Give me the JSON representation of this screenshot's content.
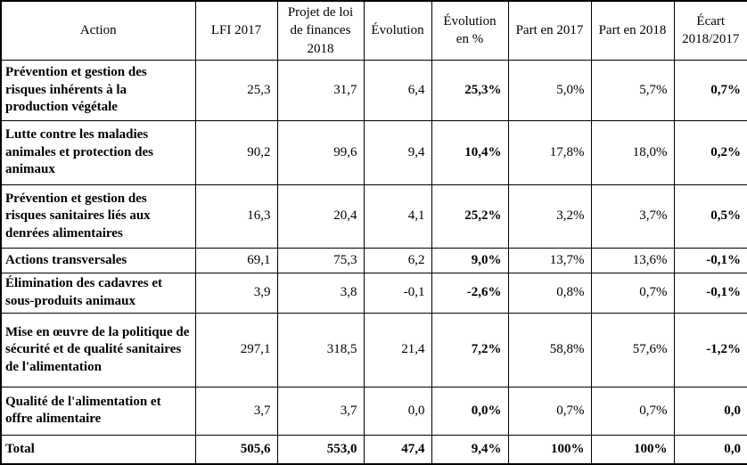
{
  "table": {
    "headers": [
      "Action",
      "LFI 2017",
      "Projet de loi de finances 2018",
      "Évolution",
      "Évolution en %",
      "Part en 2017",
      "Part en 2018",
      "Écart 2018/2017"
    ],
    "rows": [
      {
        "action": "Prévention et gestion des risques inhérents à la production végétale",
        "values": [
          "25,3",
          "31,7",
          "6,4",
          "25,3%",
          "5,0%",
          "5,7%",
          "0,7%"
        ]
      },
      {
        "action": "Lutte contre les maladies animales et protection des animaux",
        "values": [
          "90,2",
          "99,6",
          "9,4",
          "10,4%",
          "17,8%",
          "18,0%",
          "0,2%"
        ]
      },
      {
        "action": "Prévention et gestion des risques sanitaires liés aux denrées alimentaires",
        "values": [
          "16,3",
          "20,4",
          "4,1",
          "25,2%",
          "3,2%",
          "3,7%",
          "0,5%"
        ]
      },
      {
        "action": "Actions transversales",
        "values": [
          "69,1",
          "75,3",
          "6,2",
          "9,0%",
          "13,7%",
          "13,6%",
          "-0,1%"
        ]
      },
      {
        "action": "Élimination des cadavres et sous-produits animaux",
        "values": [
          "3,9",
          "3,8",
          "-0,1",
          "-2,6%",
          "0,8%",
          "0,7%",
          "-0,1%"
        ]
      },
      {
        "action": "Mise en œuvre de la politique de sécurité et de qualité sanitaires de l'alimentation",
        "values": [
          "297,1",
          "318,5",
          "21,4",
          "7,2%",
          "58,8%",
          "57,6%",
          "-1,2%"
        ]
      },
      {
        "action": "Qualité de l'alimentation et offre alimentaire",
        "values": [
          "3,7",
          "3,7",
          "0,0",
          "0,0%",
          "0,7%",
          "0,7%",
          "0,0"
        ]
      }
    ],
    "total_row": {
      "action": "Total",
      "values": [
        "505,6",
        "553,0",
        "47,4",
        "9,4%",
        "100%",
        "100%",
        "0,0"
      ]
    },
    "colors": {
      "border": "#000000",
      "text": "#000000",
      "background": "#ffffff"
    }
  }
}
